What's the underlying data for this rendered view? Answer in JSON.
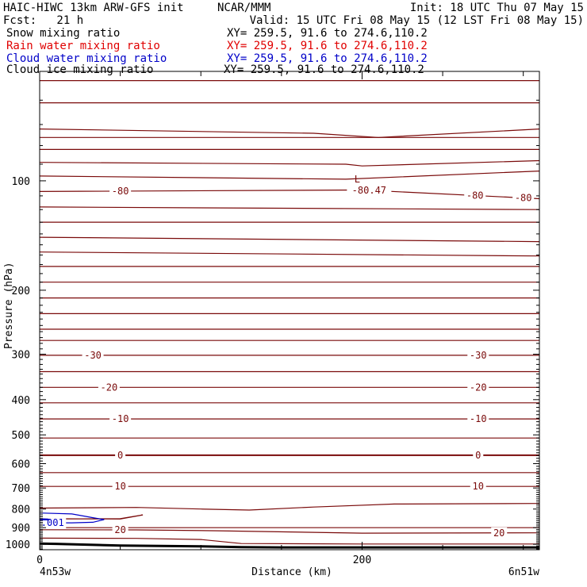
{
  "header": {
    "model": "HAIC-HIWC 13km ARW-GFS init",
    "org": "NCAR/MMM",
    "init": "Init: 18 UTC Thu 07 May 15",
    "fcst": "Fcst:   21 h",
    "valid": "Valid: 15 UTC Fri 08 May 15 (12 LST Fri 08 May 15)",
    "fields": [
      {
        "name": "Snow mixing ratio",
        "xy": "XY= 259.5, 91.6 to 274.6,110.2",
        "color": "#000000"
      },
      {
        "name": "Rain water mixing ratio",
        "xy": "XY= 259.5, 91.6 to 274.6,110.2",
        "color": "#e00000"
      },
      {
        "name": "Cloud water mixing ratio",
        "xy": "XY= 259.5, 91.6 to 274.6,110.2",
        "color": "#0000c8"
      },
      {
        "name": "Cloud ice mixing ratio",
        "xy": "XY= 259.5, 91.6 to 274.6,110.2",
        "color": "#000000"
      }
    ]
  },
  "chart_data": {
    "type": "line",
    "title": "",
    "xlabel": "Distance (km)",
    "ylabel": "Pressure (hPa)",
    "x_range": [
      0,
      310
    ],
    "y_range_hpa": [
      50,
      1035
    ],
    "y_scale": "log",
    "x_ticks": [
      0,
      200
    ],
    "x_minor_step": 50,
    "y_ticks": [
      100,
      200,
      300,
      400,
      500,
      600,
      700,
      800,
      900,
      1000
    ],
    "x_left_label": "4n53w",
    "x_right_label": "6n51w",
    "colors": {
      "temperature": "#7a0a0a",
      "cloud_water": "#0000c8",
      "terrain": "#000000",
      "axes": "#000000"
    },
    "temperature_contours": [
      {
        "x": [
          0,
          310
        ],
        "p": [
          53,
          53
        ]
      },
      {
        "x": [
          0,
          310
        ],
        "p": [
          61,
          61
        ]
      },
      {
        "x": [
          0,
          170,
          210,
          310
        ],
        "p": [
          72,
          74,
          76,
          72
        ]
      },
      {
        "x": [
          0,
          310
        ],
        "p": [
          76,
          76
        ]
      },
      {
        "x": [
          0,
          310
        ],
        "p": [
          82,
          82
        ]
      },
      {
        "x": [
          0,
          190,
          200,
          310
        ],
        "p": [
          89,
          90,
          91,
          88
        ]
      },
      {
        "x": [
          0,
          190,
          310
        ],
        "p": [
          97,
          99,
          94
        ]
      },
      {
        "x": [
          0,
          200,
          310
        ],
        "p": [
          107,
          106,
          112
        ],
        "label": "-80",
        "label_x": [
          50,
          270,
          300
        ]
      },
      {
        "x": [
          0,
          310
        ],
        "p": [
          118,
          120
        ]
      },
      {
        "x": [
          0,
          310
        ],
        "p": [
          130,
          130
        ]
      },
      {
        "x": [
          0,
          310
        ],
        "p": [
          143,
          147
        ]
      },
      {
        "x": [
          0,
          310
        ],
        "p": [
          157,
          161
        ]
      },
      {
        "x": [
          0,
          310
        ],
        "p": [
          172,
          172
        ]
      },
      {
        "x": [
          0,
          310
        ],
        "p": [
          190,
          190
        ]
      },
      {
        "x": [
          0,
          310
        ],
        "p": [
          210,
          210
        ]
      },
      {
        "x": [
          0,
          310
        ],
        "p": [
          232,
          232
        ]
      },
      {
        "x": [
          0,
          310
        ],
        "p": [
          256,
          256
        ]
      },
      {
        "x": [
          0,
          310
        ],
        "p": [
          275,
          275
        ]
      },
      {
        "x": [
          0,
          310
        ],
        "p": [
          302,
          302
        ],
        "label": "-30",
        "label_x": [
          33,
          272
        ]
      },
      {
        "x": [
          0,
          310
        ],
        "p": [
          335,
          335
        ]
      },
      {
        "x": [
          0,
          310
        ],
        "p": [
          370,
          370
        ],
        "label": "-20",
        "label_x": [
          43,
          272
        ]
      },
      {
        "x": [
          0,
          310
        ],
        "p": [
          408,
          408
        ]
      },
      {
        "x": [
          0,
          310
        ],
        "p": [
          452,
          452
        ],
        "label": "-10",
        "label_x": [
          50,
          272
        ]
      },
      {
        "x": [
          0,
          310
        ],
        "p": [
          510,
          510
        ]
      },
      {
        "x": [
          0,
          310
        ],
        "p": [
          569,
          569
        ],
        "label": "0",
        "label_x": [
          50,
          272
        ],
        "bold": true
      },
      {
        "x": [
          0,
          310
        ],
        "p": [
          635,
          635
        ]
      },
      {
        "x": [
          0,
          310
        ],
        "p": [
          693,
          693
        ],
        "label": "10",
        "label_x": [
          50,
          272
        ]
      },
      {
        "x": [
          0,
          60,
          100,
          130,
          170,
          220,
          310
        ],
        "p": [
          795,
          792,
          800,
          805,
          790,
          775,
          772
        ]
      },
      {
        "x": [
          0,
          50,
          64,
          50,
          0
        ],
        "p": [
          850,
          852,
          830,
          850,
          852
        ]
      },
      {
        "x": [
          0,
          100,
          310
        ],
        "p": [
          900,
          900,
          900
        ]
      },
      {
        "x": [
          0,
          60,
          110,
          200,
          310
        ],
        "p": [
          912,
          913,
          918,
          932,
          930
        ],
        "label": "20",
        "label_x": [
          50,
          285
        ]
      },
      {
        "x": [
          0,
          60,
          100,
          125,
          200,
          310
        ],
        "p": [
          962,
          963,
          970,
          995,
          998,
          998
        ]
      }
    ],
    "min_marker": {
      "x": 197,
      "p": 102,
      "label": "L",
      "value": "-80.47"
    },
    "cloud_water_contours": [
      {
        "x": [
          0,
          20,
          33,
          40,
          33,
          20,
          0
        ],
        "p": [
          820,
          825,
          845,
          855,
          870,
          873,
          873
        ],
        "label": ".001"
      },
      {
        "x": [
          0,
          5,
          6,
          5,
          0
        ],
        "p": [
          851,
          852,
          855,
          857,
          857
        ]
      }
    ],
    "terrain": {
      "x": [
        0,
        10,
        50,
        100,
        125,
        150,
        200,
        310
      ],
      "p": [
        995,
        997,
        1008,
        1013,
        1018,
        1020,
        1020,
        1020
      ]
    }
  }
}
